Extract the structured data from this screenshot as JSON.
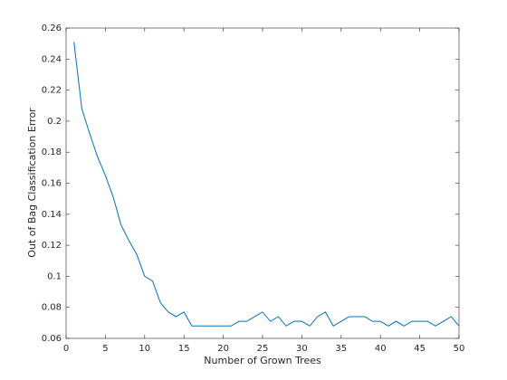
{
  "chart_data": {
    "type": "line",
    "xlabel": "Number of Grown Trees",
    "ylabel": "Out of Bag Classification Error",
    "color": "#0072bd",
    "x": [
      1,
      2,
      3,
      4,
      5,
      6,
      7,
      8,
      9,
      10,
      11,
      12,
      13,
      14,
      15,
      16,
      17,
      18,
      19,
      20,
      21,
      22,
      23,
      24,
      25,
      26,
      27,
      28,
      29,
      30,
      31,
      32,
      33,
      34,
      35,
      36,
      37,
      38,
      39,
      40,
      41,
      42,
      43,
      44,
      45,
      46,
      47,
      48,
      49,
      50
    ],
    "values": [
      0.251,
      0.208,
      0.192,
      0.177,
      0.165,
      0.151,
      0.133,
      0.123,
      0.114,
      0.1,
      0.097,
      0.083,
      0.077,
      0.074,
      0.077,
      0.068,
      0.068,
      0.068,
      0.068,
      0.068,
      0.068,
      0.071,
      0.071,
      0.074,
      0.077,
      0.071,
      0.074,
      0.068,
      0.071,
      0.071,
      0.068,
      0.074,
      0.077,
      0.068,
      0.071,
      0.074,
      0.074,
      0.074,
      0.071,
      0.071,
      0.068,
      0.071,
      0.068,
      0.071,
      0.071,
      0.071,
      0.068,
      0.071,
      0.074,
      0.068
    ],
    "xlim": [
      0,
      50
    ],
    "xticks": [
      0,
      5,
      10,
      15,
      20,
      25,
      30,
      35,
      40,
      45,
      50
    ],
    "ylim": [
      0.06,
      0.26
    ],
    "yticks": [
      0.06,
      0.08,
      0.1,
      0.12,
      0.14,
      0.16,
      0.18,
      0.2,
      0.22,
      0.24,
      0.26
    ]
  }
}
